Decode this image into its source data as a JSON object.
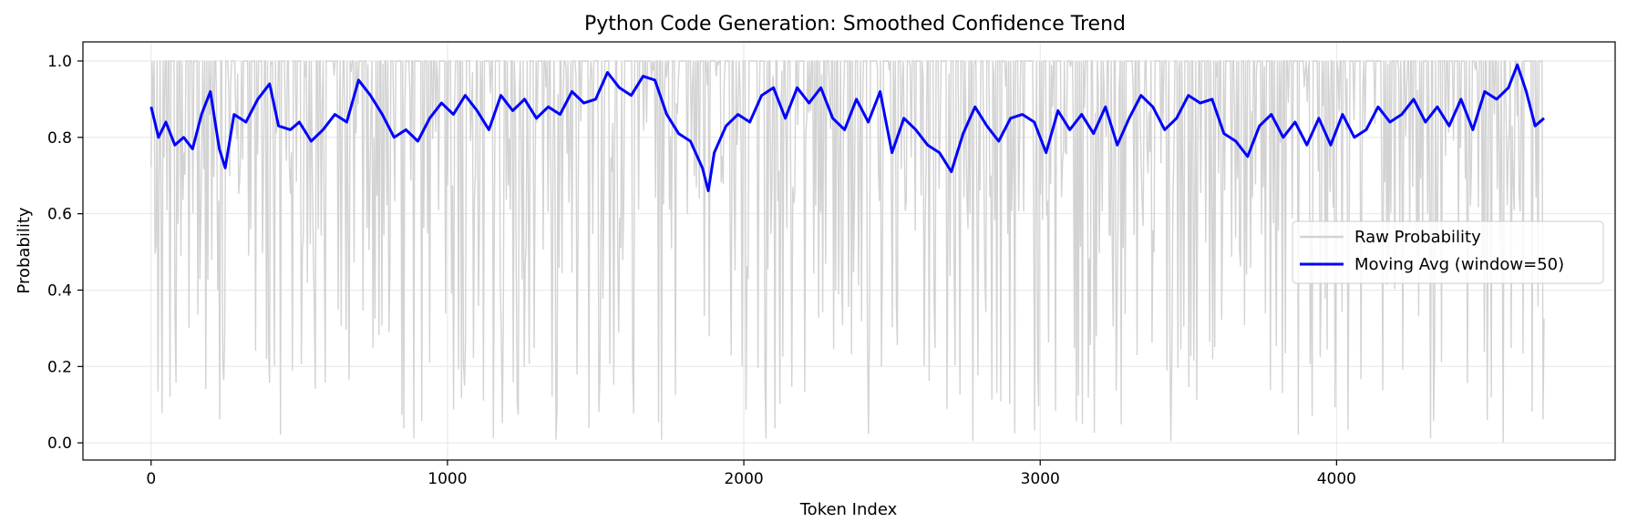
{
  "chart_data": {
    "type": "line",
    "title": "Python Code Generation: Smoothed Confidence Trend",
    "xlabel": "Token Index",
    "ylabel": "Probability",
    "xlim": [
      -230,
      4940
    ],
    "ylim": [
      -0.045,
      1.05
    ],
    "xticks": [
      0,
      1000,
      2000,
      3000,
      4000
    ],
    "yticks": [
      0.0,
      0.2,
      0.4,
      0.6,
      0.8,
      1.0
    ],
    "xtick_labels": [
      "0",
      "1000",
      "2000",
      "3000",
      "4000"
    ],
    "ytick_labels": [
      "0.0",
      "0.2",
      "0.4",
      "0.6",
      "0.8",
      "1.0"
    ],
    "grid": true,
    "legend_position": "center-right",
    "series": [
      {
        "name": "Raw Probability",
        "color": "#d3d3d3",
        "x_range": [
          0,
          4700
        ],
        "description_values": {
          "min": 0.0,
          "max": 1.0
        }
      },
      {
        "name": "Moving Avg (window=50)",
        "color": "#0000ff",
        "x": [
          0,
          25,
          50,
          80,
          110,
          140,
          170,
          200,
          230,
          250,
          280,
          320,
          360,
          400,
          430,
          470,
          500,
          540,
          580,
          620,
          660,
          700,
          740,
          780,
          820,
          860,
          900,
          940,
          980,
          1020,
          1060,
          1100,
          1140,
          1180,
          1220,
          1260,
          1300,
          1340,
          1380,
          1420,
          1460,
          1500,
          1540,
          1580,
          1620,
          1660,
          1700,
          1740,
          1780,
          1820,
          1860,
          1880,
          1900,
          1940,
          1980,
          2020,
          2060,
          2100,
          2140,
          2180,
          2220,
          2260,
          2300,
          2340,
          2380,
          2420,
          2460,
          2500,
          2540,
          2580,
          2620,
          2660,
          2700,
          2740,
          2780,
          2820,
          2860,
          2900,
          2940,
          2980,
          3020,
          3060,
          3100,
          3140,
          3180,
          3220,
          3260,
          3300,
          3340,
          3380,
          3420,
          3460,
          3500,
          3540,
          3580,
          3620,
          3660,
          3700,
          3740,
          3780,
          3820,
          3860,
          3900,
          3940,
          3980,
          4020,
          4060,
          4100,
          4140,
          4180,
          4220,
          4260,
          4300,
          4340,
          4380,
          4420,
          4460,
          4500,
          4540,
          4580,
          4610,
          4640,
          4670,
          4700
        ],
        "values": [
          0.88,
          0.8,
          0.84,
          0.78,
          0.8,
          0.77,
          0.86,
          0.92,
          0.77,
          0.72,
          0.86,
          0.84,
          0.9,
          0.94,
          0.83,
          0.82,
          0.84,
          0.79,
          0.82,
          0.86,
          0.84,
          0.95,
          0.91,
          0.86,
          0.8,
          0.82,
          0.79,
          0.85,
          0.89,
          0.86,
          0.91,
          0.87,
          0.82,
          0.91,
          0.87,
          0.9,
          0.85,
          0.88,
          0.86,
          0.92,
          0.89,
          0.9,
          0.97,
          0.93,
          0.91,
          0.96,
          0.95,
          0.86,
          0.81,
          0.79,
          0.72,
          0.66,
          0.76,
          0.83,
          0.86,
          0.84,
          0.91,
          0.93,
          0.85,
          0.93,
          0.89,
          0.93,
          0.85,
          0.82,
          0.9,
          0.84,
          0.92,
          0.76,
          0.85,
          0.82,
          0.78,
          0.76,
          0.71,
          0.81,
          0.88,
          0.83,
          0.79,
          0.85,
          0.86,
          0.84,
          0.76,
          0.87,
          0.82,
          0.86,
          0.81,
          0.88,
          0.78,
          0.85,
          0.91,
          0.88,
          0.82,
          0.85,
          0.91,
          0.89,
          0.9,
          0.81,
          0.79,
          0.75,
          0.83,
          0.86,
          0.8,
          0.84,
          0.78,
          0.85,
          0.78,
          0.86,
          0.8,
          0.82,
          0.88,
          0.84,
          0.86,
          0.9,
          0.84,
          0.88,
          0.83,
          0.9,
          0.82,
          0.92,
          0.9,
          0.93,
          0.99,
          0.92,
          0.83,
          0.85
        ]
      }
    ]
  }
}
